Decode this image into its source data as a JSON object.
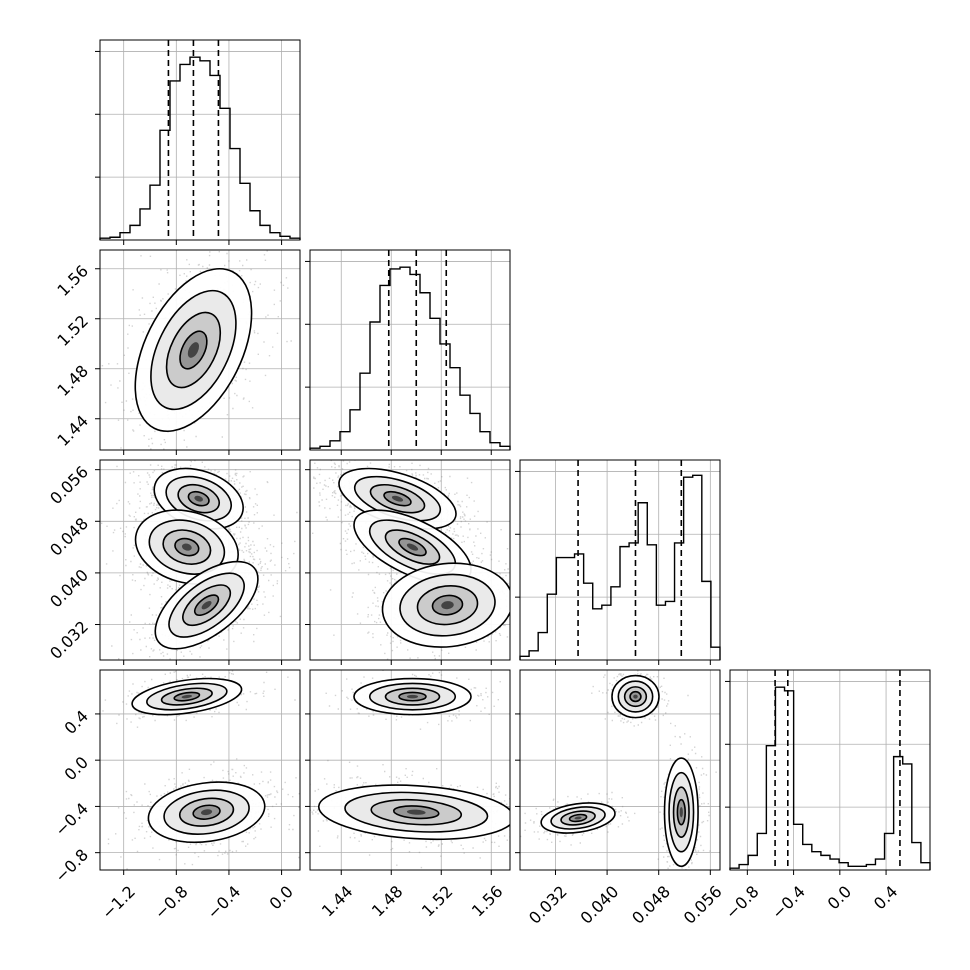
{
  "chart_data": {
    "type": "corner",
    "grid": true,
    "quantile_style": "dashed",
    "histogram_color": "#000000",
    "contour_color": "#000000",
    "point_color": "#808080",
    "parameters": [
      {
        "ticks": [
          -1.2,
          -0.8,
          -0.4,
          0.0
        ],
        "tick_labels": [
          "−1.2",
          "−0.8",
          "−0.4",
          "0.0"
        ],
        "range": [
          -1.38,
          0.14
        ],
        "quantiles": [
          -0.86,
          -0.67,
          -0.48
        ],
        "hist_bins": [
          0.01,
          0.015,
          0.04,
          0.08,
          0.17,
          0.3,
          0.6,
          0.87,
          0.96,
          1.0,
          0.98,
          0.9,
          0.72,
          0.5,
          0.31,
          0.16,
          0.08,
          0.04,
          0.02,
          0.01
        ]
      },
      {
        "ticks": [
          1.44,
          1.48,
          1.52,
          1.56
        ],
        "tick_labels": [
          "1.44",
          "1.48",
          "1.52",
          "1.56"
        ],
        "range": [
          1.415,
          1.575
        ],
        "quantiles": [
          1.478,
          1.5,
          1.524
        ],
        "hist_bins": [
          0.01,
          0.02,
          0.05,
          0.1,
          0.22,
          0.42,
          0.7,
          0.9,
          0.99,
          1.0,
          0.96,
          0.86,
          0.72,
          0.58,
          0.45,
          0.3,
          0.2,
          0.1,
          0.04,
          0.02
        ]
      },
      {
        "ticks": [
          0.032,
          0.04,
          0.048,
          0.056
        ],
        "tick_labels": [
          "0.032",
          "0.040",
          "0.048",
          "0.056"
        ],
        "range": [
          0.0265,
          0.0575
        ],
        "quantiles": [
          0.0355,
          0.0444,
          0.0515
        ],
        "hist_bins": [
          0.02,
          0.05,
          0.15,
          0.36,
          0.56,
          0.56,
          0.58,
          0.42,
          0.28,
          0.3,
          0.4,
          0.62,
          0.64,
          0.86,
          0.63,
          0.3,
          0.32,
          0.64,
          1.0,
          1.01,
          0.43,
          0.07
        ]
      },
      {
        "ticks": [
          -0.8,
          -0.4,
          0.0,
          0.4
        ],
        "tick_labels": [
          "−0.8",
          "−0.4",
          "0.0",
          "0.4"
        ],
        "range": [
          -0.95,
          0.78
        ],
        "quantiles": [
          -0.56,
          -0.45,
          0.52
        ],
        "hist_bins": [
          0.01,
          0.03,
          0.08,
          0.2,
          0.68,
          1.0,
          0.98,
          0.25,
          0.14,
          0.1,
          0.08,
          0.06,
          0.04,
          0.02,
          0.02,
          0.03,
          0.06,
          0.2,
          0.62,
          0.58,
          0.15,
          0.04
        ]
      }
    ]
  }
}
